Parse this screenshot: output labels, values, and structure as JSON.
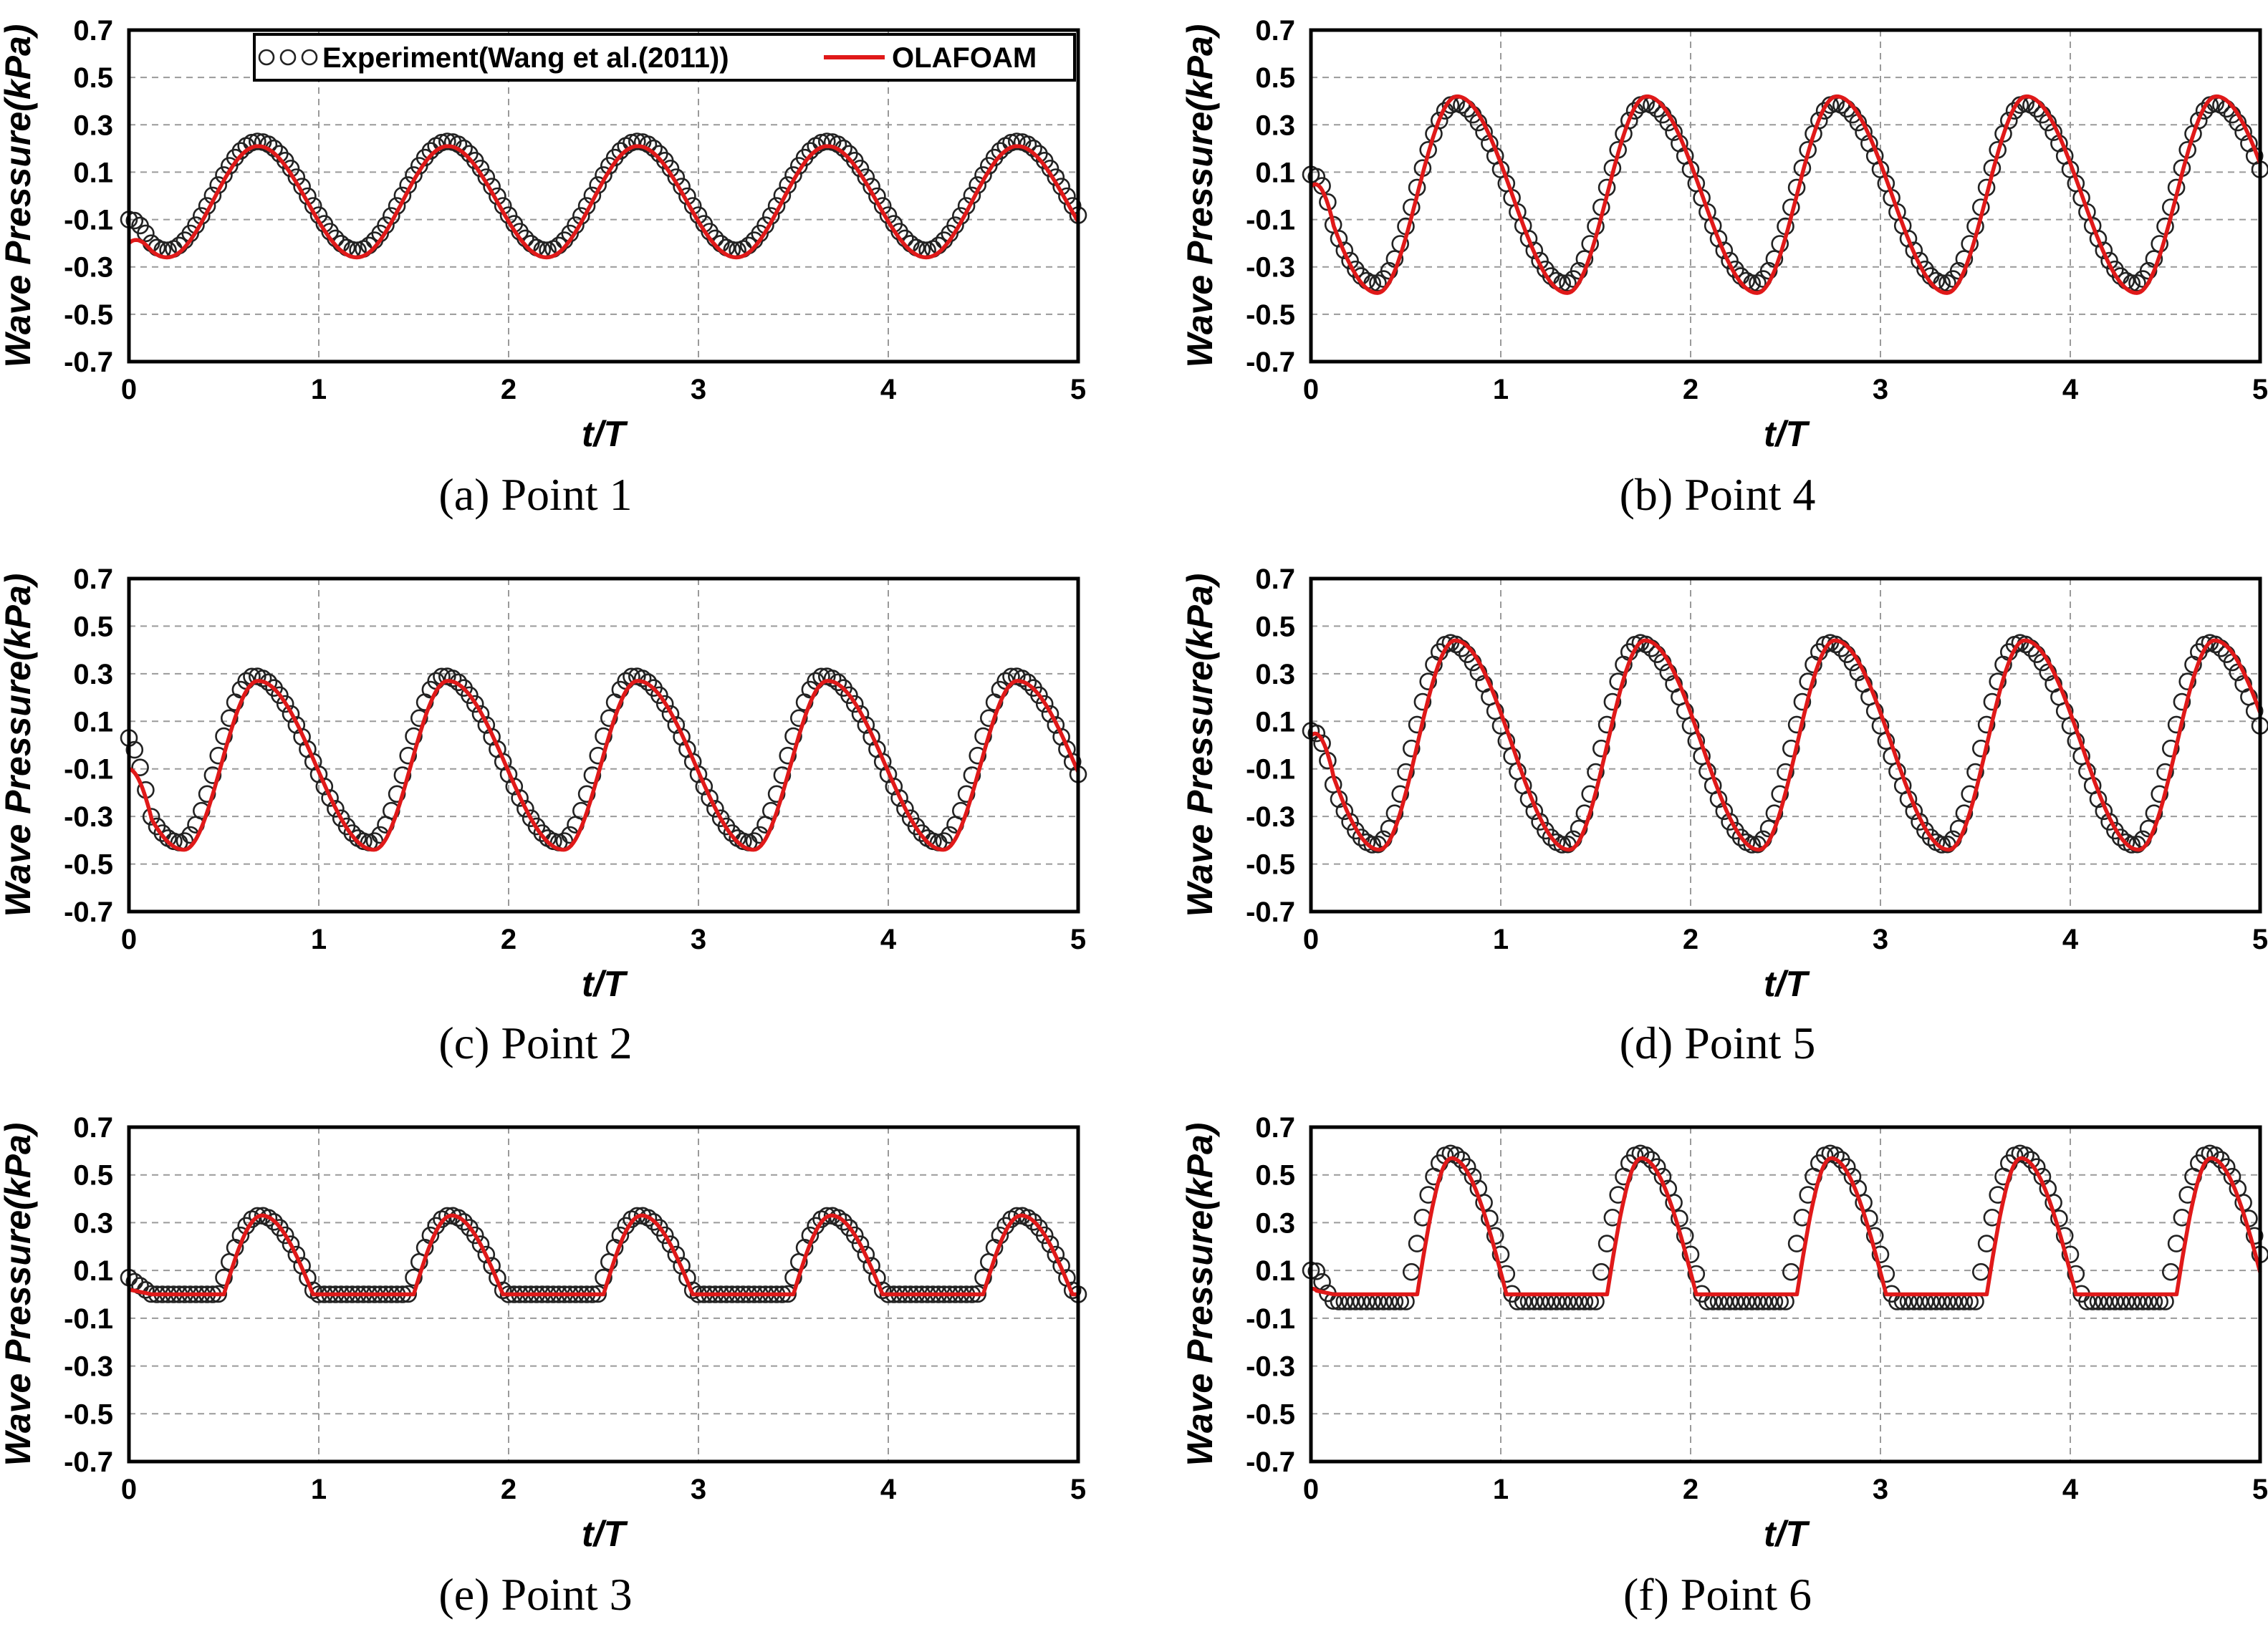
{
  "figure": {
    "colors": {
      "experiment": "#222222",
      "model": "#e01919",
      "grid": "#9a9a9a"
    },
    "legend": {
      "experiment_label": "Experiment(Wang et al.(2011))",
      "model_label": "OLAFOAM"
    }
  },
  "chart_data": [
    {
      "type": "line",
      "caption": "(a)  Point  1",
      "xlabel": "t/T",
      "ylabel": "Wave Pressure(kPa)",
      "xlim": [
        0,
        5
      ],
      "ylim": [
        -0.7,
        0.7
      ],
      "xticks": [
        "0",
        "1",
        "2",
        "3",
        "4",
        "5"
      ],
      "yticks": [
        "0.7",
        "0.5",
        "0.3",
        "0.1",
        "-0.1",
        "-0.3",
        "-0.5",
        "-0.7"
      ],
      "grid": true,
      "legend": "top-right",
      "wave": {
        "min": -0.26,
        "max": 0.21,
        "shape": "standard",
        "peak_phase": 0.68,
        "trough_phase": 0.2,
        "start": -0.2
      },
      "experiment": {
        "min": -0.23,
        "max": 0.23,
        "shape": "standard",
        "peak_phase": 0.68,
        "trough_phase": 0.2,
        "start": -0.1,
        "lag": 0.0
      },
      "series": [
        {
          "name": "Experiment(Wang et al.(2011))"
        },
        {
          "name": "OLAFOAM"
        }
      ]
    },
    {
      "type": "line",
      "caption": "(b)  Point  4",
      "xlabel": "t/T",
      "ylabel": "Wave Pressure(kPa)",
      "xlim": [
        0,
        5
      ],
      "ylim": [
        -0.7,
        0.7
      ],
      "xticks": [
        "0",
        "1",
        "2",
        "3",
        "4",
        "5"
      ],
      "yticks": [
        "0.7",
        "0.5",
        "0.3",
        "0.1",
        "-0.1",
        "-0.3",
        "-0.5",
        "-0.7"
      ],
      "grid": true,
      "wave": {
        "min": -0.41,
        "max": 0.42,
        "shape": "standard",
        "peak_phase": 0.77,
        "trough_phase": 0.35,
        "start": 0.04
      },
      "experiment": {
        "min": -0.37,
        "max": 0.39,
        "shape": "standard",
        "peak_phase": 0.76,
        "trough_phase": 0.34,
        "start": 0.09,
        "lag": 0.0
      },
      "series": [
        {
          "name": "Experiment(Wang et al.(2011))"
        },
        {
          "name": "OLAFOAM"
        }
      ]
    },
    {
      "type": "line",
      "caption": "(c)  Point  2",
      "xlabel": "t/T",
      "ylabel": "Wave Pressure(kPa)",
      "xlim": [
        0,
        5
      ],
      "ylim": [
        -0.7,
        0.7
      ],
      "xticks": [
        "0",
        "1",
        "2",
        "3",
        "4",
        "5"
      ],
      "yticks": [
        "0.7",
        "0.5",
        "0.3",
        "0.1",
        "-0.1",
        "-0.3",
        "-0.5",
        "-0.7"
      ],
      "grid": true,
      "wave": {
        "min": -0.44,
        "max": 0.27,
        "shape": "standard",
        "peak_phase": 0.68,
        "trough_phase": 0.29,
        "start": -0.1
      },
      "experiment": {
        "min": -0.41,
        "max": 0.29,
        "shape": "standard",
        "peak_phase": 0.66,
        "trough_phase": 0.27,
        "start": 0.03,
        "lag": 0.0
      },
      "series": [
        {
          "name": "Experiment(Wang et al.(2011))"
        },
        {
          "name": "OLAFOAM"
        }
      ]
    },
    {
      "type": "line",
      "caption": "(d)  Point  5",
      "xlabel": "t/T",
      "ylabel": "Wave Pressure(kPa)",
      "xlim": [
        0,
        5
      ],
      "ylim": [
        -0.7,
        0.7
      ],
      "xticks": [
        "0",
        "1",
        "2",
        "3",
        "4",
        "5"
      ],
      "yticks": [
        "0.7",
        "0.5",
        "0.3",
        "0.1",
        "-0.1",
        "-0.3",
        "-0.5",
        "-0.7"
      ],
      "grid": true,
      "wave": {
        "min": -0.44,
        "max": 0.44,
        "shape": "standard",
        "peak_phase": 0.76,
        "trough_phase": 0.36,
        "start": 0.04
      },
      "experiment": {
        "min": -0.42,
        "max": 0.43,
        "shape": "standard",
        "peak_phase": 0.73,
        "trough_phase": 0.34,
        "start": 0.06,
        "lag": 0.0
      },
      "series": [
        {
          "name": "Experiment(Wang et al.(2011))"
        },
        {
          "name": "OLAFOAM"
        }
      ]
    },
    {
      "type": "line",
      "caption": "(e)  Point  3",
      "xlabel": "t/T",
      "ylabel": "Wave Pressure(kPa)",
      "xlim": [
        0,
        5
      ],
      "ylim": [
        -0.7,
        0.7
      ],
      "xticks": [
        "0",
        "1",
        "2",
        "3",
        "4",
        "5"
      ],
      "yticks": [
        "0.7",
        "0.5",
        "0.3",
        "0.1",
        "-0.1",
        "-0.3",
        "-0.5",
        "-0.7"
      ],
      "grid": true,
      "wave": {
        "min": 0.0,
        "max": 0.33,
        "shape": "pulse",
        "peak_phase": 0.7,
        "rise_start": 0.5,
        "fall_end": 0.97,
        "start": 0.02
      },
      "experiment": {
        "min": 0.0,
        "max": 0.33,
        "shape": "pulse",
        "peak_phase": 0.69,
        "rise_start": 0.47,
        "fall_end": 0.98,
        "start": 0.07,
        "lag": 0.0
      },
      "series": [
        {
          "name": "Experiment(Wang et al.(2011))"
        },
        {
          "name": "OLAFOAM"
        }
      ]
    },
    {
      "type": "line",
      "caption": "(f)  Point  6",
      "xlabel": "t/T",
      "ylabel": "Wave Pressure(kPa)",
      "xlim": [
        0,
        5
      ],
      "ylim": [
        -0.7,
        0.7
      ],
      "xticks": [
        "0",
        "1",
        "2",
        "3",
        "4",
        "5"
      ],
      "yticks": [
        "0.7",
        "0.5",
        "0.3",
        "0.1",
        "-0.1",
        "-0.3",
        "-0.5",
        "-0.7"
      ],
      "grid": true,
      "wave": {
        "min": 0.0,
        "max": 0.57,
        "shape": "pulse",
        "peak_phase": 0.74,
        "rise_start": 0.56,
        "fall_end": 1.03,
        "start": 0.02
      },
      "experiment": {
        "min": -0.03,
        "max": 0.59,
        "shape": "pulse",
        "peak_phase": 0.73,
        "rise_start": 0.5,
        "fall_end": 1.07,
        "start": 0.1,
        "lag": 0.0
      },
      "series": [
        {
          "name": "Experiment(Wang et al.(2011))"
        },
        {
          "name": "OLAFOAM"
        }
      ]
    }
  ]
}
